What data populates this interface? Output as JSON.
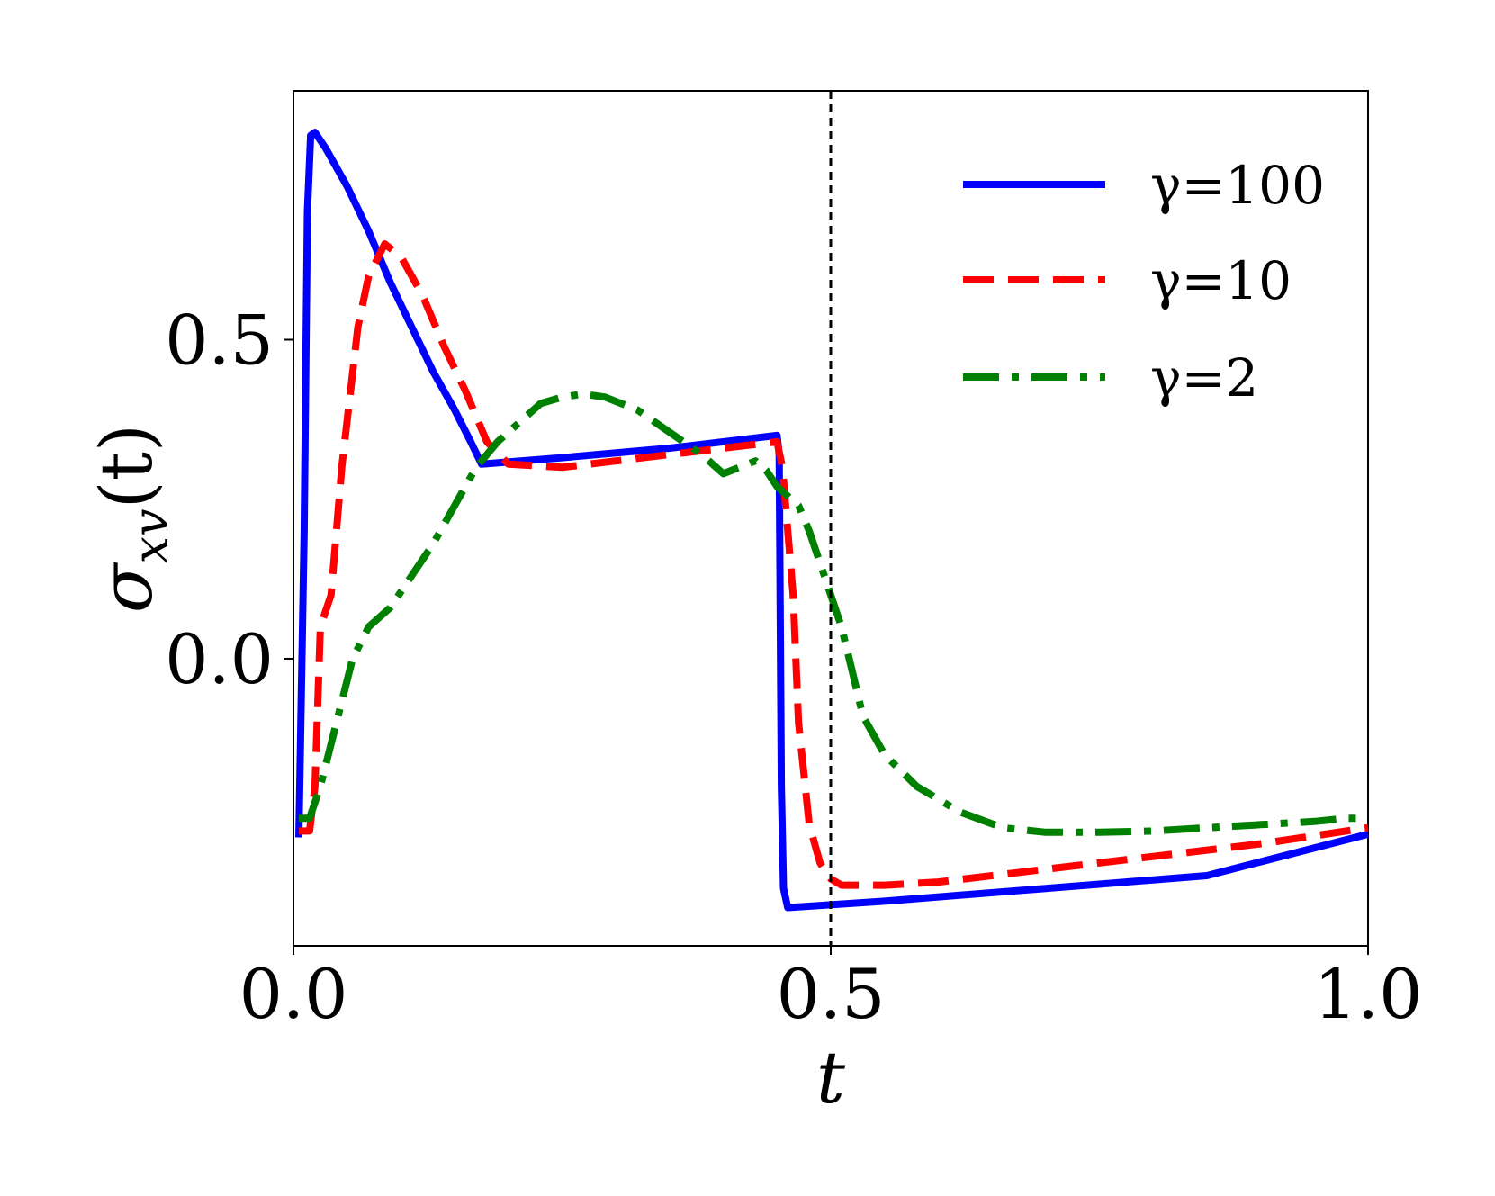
{
  "chart_data": {
    "type": "line",
    "title": "",
    "xlabel": "t",
    "ylabel": "σxv(t)",
    "ylabel_main": "σ",
    "ylabel_sub": "xv",
    "ylabel_arg": "(t)",
    "xlim": [
      0.0,
      1.0
    ],
    "ylim": [
      -0.45,
      0.89
    ],
    "xticks": [
      0.0,
      0.5,
      1.0
    ],
    "xtick_labels": [
      "0.0",
      "0.5",
      "1.0"
    ],
    "yticks": [
      0.0,
      0.5
    ],
    "ytick_labels": [
      "0.0",
      "0.5"
    ],
    "grid": false,
    "legend_position": "top-right",
    "vline": {
      "x": 0.5,
      "style": "dashed",
      "color": "#000000"
    },
    "series": [
      {
        "name": "γ=100",
        "color": "#0000ff",
        "style": "solid",
        "points": [
          [
            0.005,
            -0.28
          ],
          [
            0.01,
            0.2
          ],
          [
            0.013,
            0.7
          ],
          [
            0.016,
            0.82
          ],
          [
            0.02,
            0.825
          ],
          [
            0.03,
            0.8
          ],
          [
            0.05,
            0.74
          ],
          [
            0.07,
            0.67
          ],
          [
            0.09,
            0.59
          ],
          [
            0.11,
            0.52
          ],
          [
            0.13,
            0.45
          ],
          [
            0.15,
            0.39
          ],
          [
            0.165,
            0.34
          ],
          [
            0.175,
            0.305
          ],
          [
            0.25,
            0.315
          ],
          [
            0.35,
            0.33
          ],
          [
            0.45,
            0.35
          ],
          [
            0.452,
            0.32
          ],
          [
            0.454,
            -0.2
          ],
          [
            0.456,
            -0.36
          ],
          [
            0.46,
            -0.39
          ],
          [
            0.55,
            -0.38
          ],
          [
            0.7,
            -0.36
          ],
          [
            0.85,
            -0.34
          ],
          [
            1.0,
            -0.275
          ]
        ]
      },
      {
        "name": "γ=10",
        "color": "#ff0000",
        "style": "dashed",
        "points": [
          [
            0.005,
            -0.27
          ],
          [
            0.015,
            -0.27
          ],
          [
            0.02,
            -0.2
          ],
          [
            0.025,
            0.05
          ],
          [
            0.035,
            0.1
          ],
          [
            0.045,
            0.3
          ],
          [
            0.06,
            0.52
          ],
          [
            0.07,
            0.6
          ],
          [
            0.085,
            0.65
          ],
          [
            0.1,
            0.63
          ],
          [
            0.12,
            0.57
          ],
          [
            0.14,
            0.49
          ],
          [
            0.16,
            0.42
          ],
          [
            0.18,
            0.34
          ],
          [
            0.2,
            0.305
          ],
          [
            0.25,
            0.3
          ],
          [
            0.3,
            0.31
          ],
          [
            0.35,
            0.32
          ],
          [
            0.4,
            0.33
          ],
          [
            0.45,
            0.34
          ],
          [
            0.455,
            0.3
          ],
          [
            0.465,
            0.1
          ],
          [
            0.47,
            -0.1
          ],
          [
            0.48,
            -0.26
          ],
          [
            0.49,
            -0.32
          ],
          [
            0.5,
            -0.345
          ],
          [
            0.51,
            -0.355
          ],
          [
            0.55,
            -0.355
          ],
          [
            0.6,
            -0.35
          ],
          [
            0.7,
            -0.33
          ],
          [
            0.8,
            -0.31
          ],
          [
            0.9,
            -0.29
          ],
          [
            1.0,
            -0.265
          ]
        ]
      },
      {
        "name": "γ=2",
        "color": "#008000",
        "style": "dashdot",
        "points": [
          [
            0.005,
            -0.25
          ],
          [
            0.015,
            -0.25
          ],
          [
            0.025,
            -0.2
          ],
          [
            0.04,
            -0.1
          ],
          [
            0.055,
            0.0
          ],
          [
            0.07,
            0.05
          ],
          [
            0.09,
            0.08
          ],
          [
            0.11,
            0.13
          ],
          [
            0.13,
            0.18
          ],
          [
            0.15,
            0.24
          ],
          [
            0.17,
            0.3
          ],
          [
            0.19,
            0.34
          ],
          [
            0.21,
            0.37
          ],
          [
            0.23,
            0.4
          ],
          [
            0.25,
            0.41
          ],
          [
            0.27,
            0.415
          ],
          [
            0.29,
            0.41
          ],
          [
            0.32,
            0.39
          ],
          [
            0.35,
            0.355
          ],
          [
            0.38,
            0.32
          ],
          [
            0.4,
            0.29
          ],
          [
            0.415,
            0.3
          ],
          [
            0.43,
            0.31
          ],
          [
            0.44,
            0.295
          ],
          [
            0.45,
            0.27
          ],
          [
            0.47,
            0.24
          ],
          [
            0.48,
            0.2
          ],
          [
            0.49,
            0.15
          ],
          [
            0.5,
            0.1
          ],
          [
            0.51,
            0.05
          ],
          [
            0.52,
            -0.02
          ],
          [
            0.53,
            -0.09
          ],
          [
            0.55,
            -0.15
          ],
          [
            0.58,
            -0.2
          ],
          [
            0.62,
            -0.24
          ],
          [
            0.66,
            -0.265
          ],
          [
            0.7,
            -0.272
          ],
          [
            0.75,
            -0.272
          ],
          [
            0.8,
            -0.27
          ],
          [
            0.85,
            -0.265
          ],
          [
            0.9,
            -0.26
          ],
          [
            0.95,
            -0.255
          ],
          [
            0.98,
            -0.25
          ],
          [
            1.0,
            -0.25
          ]
        ]
      }
    ]
  }
}
